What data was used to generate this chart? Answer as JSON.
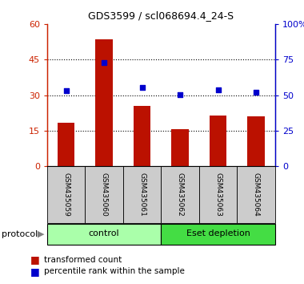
{
  "title": "GDS3599 / scl068694.4_24-S",
  "categories": [
    "GSM435059",
    "GSM435060",
    "GSM435061",
    "GSM435062",
    "GSM435063",
    "GSM435064"
  ],
  "bar_values": [
    18.5,
    53.5,
    25.5,
    15.5,
    21.5,
    21.0
  ],
  "percentile_values": [
    53.0,
    73.0,
    55.5,
    50.5,
    53.5,
    52.0
  ],
  "bar_color": "#bb1100",
  "dot_color": "#0000cc",
  "ylim_left": [
    0,
    60
  ],
  "ylim_right": [
    0,
    100
  ],
  "yticks_left": [
    0,
    15,
    30,
    45,
    60
  ],
  "ytick_labels_left": [
    "0",
    "15",
    "30",
    "45",
    "60"
  ],
  "yticks_right": [
    0,
    25,
    50,
    75,
    100
  ],
  "ytick_labels_right": [
    "0",
    "25",
    "50",
    "75",
    "100%"
  ],
  "hgrid_at": [
    15,
    30,
    45
  ],
  "groups": [
    {
      "label": "control",
      "indices": [
        0,
        1,
        2
      ],
      "color": "#aaffaa"
    },
    {
      "label": "Eset depletion",
      "indices": [
        3,
        4,
        5
      ],
      "color": "#44dd44"
    }
  ],
  "protocol_label": "protocol",
  "legend_bar_label": "transformed count",
  "legend_dot_label": "percentile rank within the sample",
  "tick_label_color_left": "#cc2200",
  "tick_label_color_right": "#0000cc",
  "label_box_color": "#cccccc",
  "background_color": "#ffffff"
}
